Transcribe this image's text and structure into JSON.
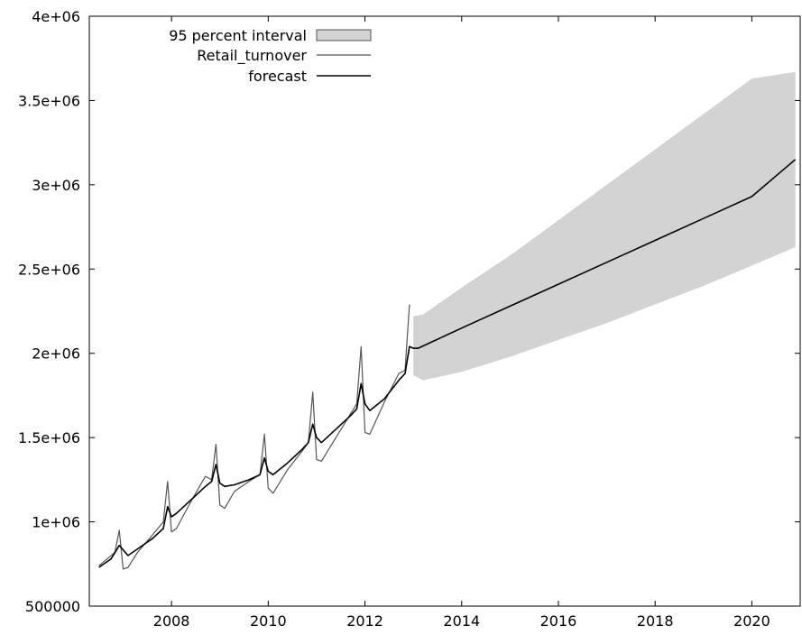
{
  "chart_data": {
    "type": "line",
    "title": "",
    "xlabel": "",
    "ylabel": "",
    "xlim": [
      2006.3,
      2021.0
    ],
    "ylim": [
      500000,
      4000000
    ],
    "x_ticks": [
      2008,
      2010,
      2012,
      2014,
      2016,
      2018,
      2020
    ],
    "x_tick_labels": [
      "2008",
      "2010",
      "2012",
      "2014",
      "2016",
      "2018",
      "2020"
    ],
    "y_ticks": [
      500000,
      1000000,
      1500000,
      2000000,
      2500000,
      3000000,
      3500000,
      4000000
    ],
    "y_tick_labels": [
      "500000",
      "1e+06",
      "1.5e+06",
      "2e+06",
      "2.5e+06",
      "3e+06",
      "3.5e+06",
      "4e+06"
    ],
    "grid": false,
    "legend_position": "top-left",
    "colors": {
      "interval_fill": "#d3d3d3",
      "retail_line": "#555555",
      "forecast_line": "#000000"
    },
    "series": [
      {
        "name": "95 percent interval",
        "type": "band",
        "x": [
          2013.0,
          2013.2,
          2014.0,
          2015.0,
          2016.0,
          2017.0,
          2018.0,
          2019.0,
          2020.0,
          2020.9
        ],
        "lower": [
          1870000,
          1840000,
          1890000,
          1980000,
          2080000,
          2180000,
          2290000,
          2400000,
          2520000,
          2630000
        ],
        "upper": [
          2220000,
          2230000,
          2390000,
          2580000,
          2790000,
          3000000,
          3210000,
          3420000,
          3630000,
          3670000
        ]
      },
      {
        "name": "Retail_turnover",
        "type": "line",
        "x": [
          2006.5,
          2006.75,
          2006.83,
          2006.92,
          2007.0,
          2007.1,
          2007.3,
          2007.6,
          2007.83,
          2007.92,
          2008.0,
          2008.1,
          2008.4,
          2008.7,
          2008.83,
          2008.92,
          2009.0,
          2009.1,
          2009.3,
          2009.6,
          2009.83,
          2009.92,
          2010.0,
          2010.1,
          2010.4,
          2010.7,
          2010.83,
          2010.92,
          2011.0,
          2011.1,
          2011.4,
          2011.7,
          2011.83,
          2011.92,
          2012.0,
          2012.1,
          2012.4,
          2012.7,
          2012.83,
          2012.92
        ],
        "y": [
          740000,
          800000,
          820000,
          950000,
          720000,
          730000,
          820000,
          920000,
          1000000,
          1240000,
          940000,
          960000,
          1120000,
          1270000,
          1250000,
          1460000,
          1100000,
          1080000,
          1180000,
          1240000,
          1280000,
          1520000,
          1200000,
          1170000,
          1310000,
          1420000,
          1470000,
          1770000,
          1370000,
          1360000,
          1500000,
          1640000,
          1700000,
          2040000,
          1530000,
          1520000,
          1710000,
          1880000,
          1900000,
          2290000
        ]
      },
      {
        "name": "forecast",
        "type": "line",
        "x": [
          2006.5,
          2006.75,
          2006.92,
          2007.1,
          2007.3,
          2007.6,
          2007.83,
          2007.92,
          2008.0,
          2008.1,
          2008.4,
          2008.7,
          2008.83,
          2008.92,
          2009.0,
          2009.1,
          2009.3,
          2009.6,
          2009.83,
          2009.92,
          2010.0,
          2010.1,
          2010.4,
          2010.7,
          2010.83,
          2010.92,
          2011.0,
          2011.1,
          2011.4,
          2011.7,
          2011.83,
          2011.92,
          2012.0,
          2012.1,
          2012.4,
          2012.7,
          2012.83,
          2012.92,
          2013.0,
          2013.1,
          2014.0,
          2015.0,
          2016.0,
          2017.0,
          2018.0,
          2019.0,
          2020.0,
          2020.9
        ],
        "y": [
          730000,
          780000,
          860000,
          800000,
          840000,
          900000,
          960000,
          1090000,
          1030000,
          1050000,
          1130000,
          1210000,
          1240000,
          1340000,
          1230000,
          1210000,
          1220000,
          1250000,
          1280000,
          1380000,
          1300000,
          1280000,
          1350000,
          1430000,
          1470000,
          1580000,
          1500000,
          1470000,
          1550000,
          1630000,
          1670000,
          1820000,
          1700000,
          1660000,
          1730000,
          1840000,
          1880000,
          2040000,
          2030000,
          2030000,
          2150000,
          2280000,
          2410000,
          2540000,
          2670000,
          2800000,
          2930000,
          3150000
        ]
      }
    ]
  }
}
